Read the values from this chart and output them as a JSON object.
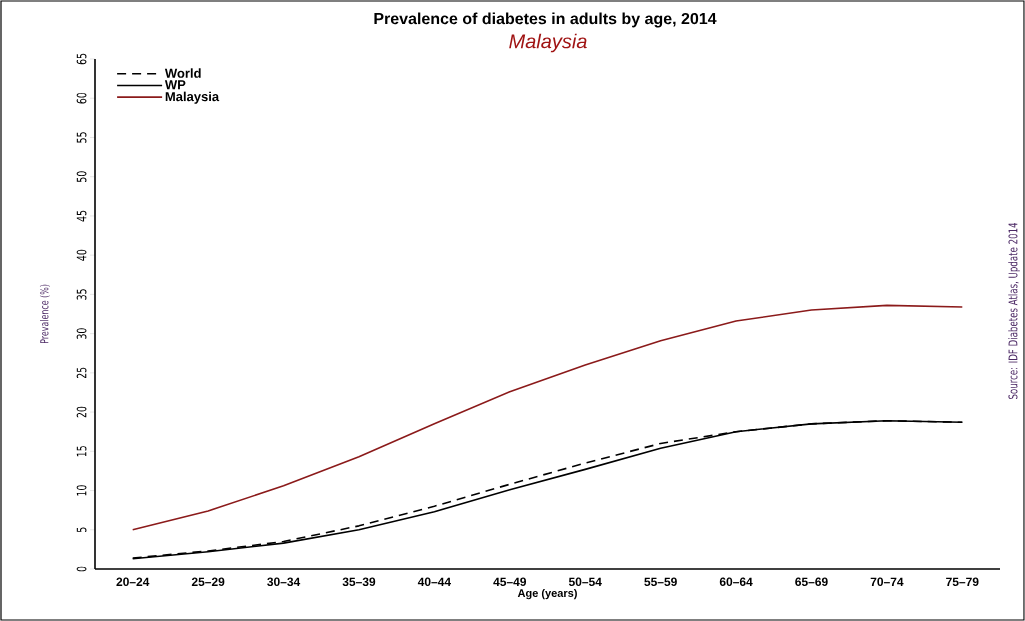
{
  "chart_data": {
    "type": "line",
    "title": "Prevalence of diabetes in adults by age, 2014",
    "subtitle": "Malaysia",
    "xlabel": "Age (years)",
    "ylabel": "Prevalence (%)",
    "annotations": [
      "Source: IDF Diabetes Atlas, Update 2014"
    ],
    "categories": [
      "20–24",
      "25–29",
      "30–34",
      "35–39",
      "40–44",
      "45–49",
      "50–54",
      "55–59",
      "60–64",
      "65–69",
      "70–74",
      "75–79"
    ],
    "series": [
      {
        "name": "World",
        "color": "#000000",
        "line_style": "dashed",
        "values": [
          1.4,
          2.3,
          3.5,
          5.5,
          8.0,
          10.8,
          13.5,
          16.0,
          17.5,
          18.5,
          18.9,
          18.7
        ]
      },
      {
        "name": "WP",
        "color": "#000000",
        "line_style": "solid",
        "values": [
          1.3,
          2.2,
          3.3,
          5.0,
          7.3,
          10.1,
          12.7,
          15.4,
          17.5,
          18.5,
          18.9,
          18.7
        ]
      },
      {
        "name": "Malaysia",
        "color": "#8b1a1a",
        "line_style": "solid",
        "values": [
          5.0,
          7.4,
          10.6,
          14.3,
          18.5,
          22.6,
          26.0,
          29.1,
          31.6,
          33.0,
          33.6,
          33.4
        ]
      }
    ],
    "ylim": [
      0,
      65
    ],
    "yticks": [
      0,
      5,
      10,
      15,
      20,
      25,
      30,
      35,
      40,
      45,
      50,
      55,
      60,
      65
    ],
    "grid": false,
    "legend": "top left"
  }
}
